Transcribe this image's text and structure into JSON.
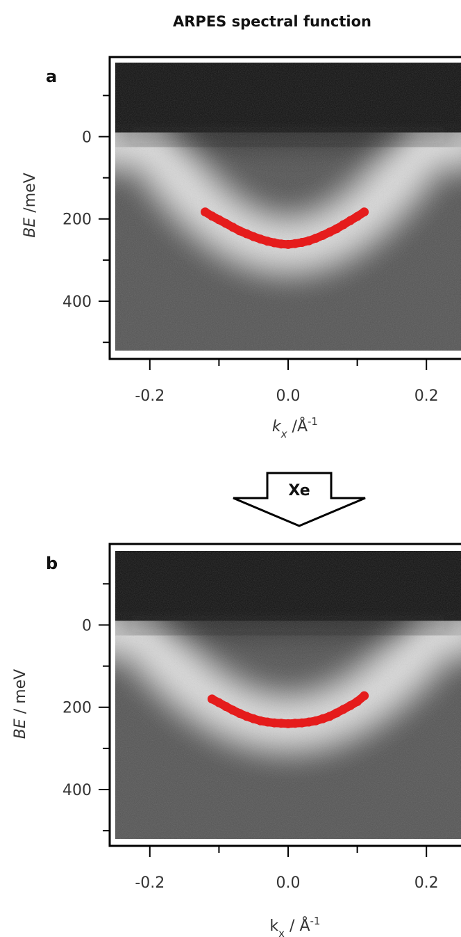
{
  "title": "ARPES spectral function",
  "transition_label": "Xe",
  "colors": {
    "dispersion": "#e51c1c",
    "frame": "#000000",
    "background": "#ffffff"
  },
  "chart_data": [
    {
      "type": "heatmap",
      "panel": "a",
      "xlabel_main": "k",
      "xlabel_sub": "x",
      "xlabel_rest": " /Å",
      "xlabel_sup": "-1",
      "ylabel_main": "BE",
      "ylabel_rest": " /meV",
      "xlim": [
        -0.25,
        0.25
      ],
      "ylim": [
        520,
        -180
      ],
      "x_ticks": [
        -0.2,
        -0.1,
        0.0,
        0.1,
        0.2
      ],
      "x_tick_labels": [
        "-0.2",
        "",
        "0.0",
        "",
        "0.2"
      ],
      "y_ticks": [
        -100,
        0,
        100,
        200,
        300,
        400,
        500
      ],
      "y_tick_labels": [
        "",
        "0",
        "",
        "200",
        "",
        "400",
        ""
      ],
      "colormap": "grayscale",
      "band_min": 265,
      "band_curvature": 6500,
      "fermi_level": 0,
      "dispersion": {
        "name": "",
        "x": [
          -0.12,
          -0.11,
          -0.1,
          -0.09,
          -0.08,
          -0.07,
          -0.06,
          -0.05,
          -0.04,
          -0.03,
          -0.02,
          -0.01,
          0.0,
          0.01,
          0.02,
          0.03,
          0.04,
          0.05,
          0.06,
          0.07,
          0.08,
          0.09,
          0.1,
          0.11
        ],
        "y": [
          183,
          193,
          202,
          211,
          220,
          229,
          236,
          243,
          249,
          254,
          258,
          261,
          262,
          260,
          257,
          253,
          247,
          240,
          232,
          224,
          214,
          204,
          194,
          183
        ]
      }
    },
    {
      "type": "heatmap",
      "panel": "b",
      "xlabel_main": "k",
      "xlabel_sub": "x",
      "xlabel_rest": " / Å",
      "xlabel_sup": "-1",
      "ylabel_main": "BE",
      "ylabel_rest": " / meV",
      "xlim": [
        -0.25,
        0.25
      ],
      "ylim": [
        520,
        -180
      ],
      "x_ticks": [
        -0.2,
        -0.1,
        0.0,
        0.1,
        0.2
      ],
      "x_tick_labels": [
        "-0.2",
        "",
        "0.0",
        "",
        "0.2"
      ],
      "y_ticks": [
        -100,
        0,
        100,
        200,
        300,
        400,
        500
      ],
      "y_tick_labels": [
        "",
        "0",
        "",
        "200",
        "",
        "400",
        ""
      ],
      "colormap": "grayscale",
      "band_min": 240,
      "band_curvature": 5000,
      "fermi_level": 0,
      "dispersion": {
        "name": "",
        "x": [
          -0.11,
          -0.1,
          -0.09,
          -0.08,
          -0.07,
          -0.06,
          -0.05,
          -0.04,
          -0.03,
          -0.02,
          -0.01,
          0.0,
          0.01,
          0.02,
          0.03,
          0.04,
          0.05,
          0.06,
          0.07,
          0.08,
          0.09,
          0.1,
          0.11
        ],
        "y": [
          180,
          189,
          198,
          207,
          215,
          222,
          228,
          233,
          236,
          238,
          239,
          240,
          239,
          238,
          236,
          233,
          228,
          222,
          214,
          205,
          196,
          186,
          172
        ]
      }
    }
  ]
}
